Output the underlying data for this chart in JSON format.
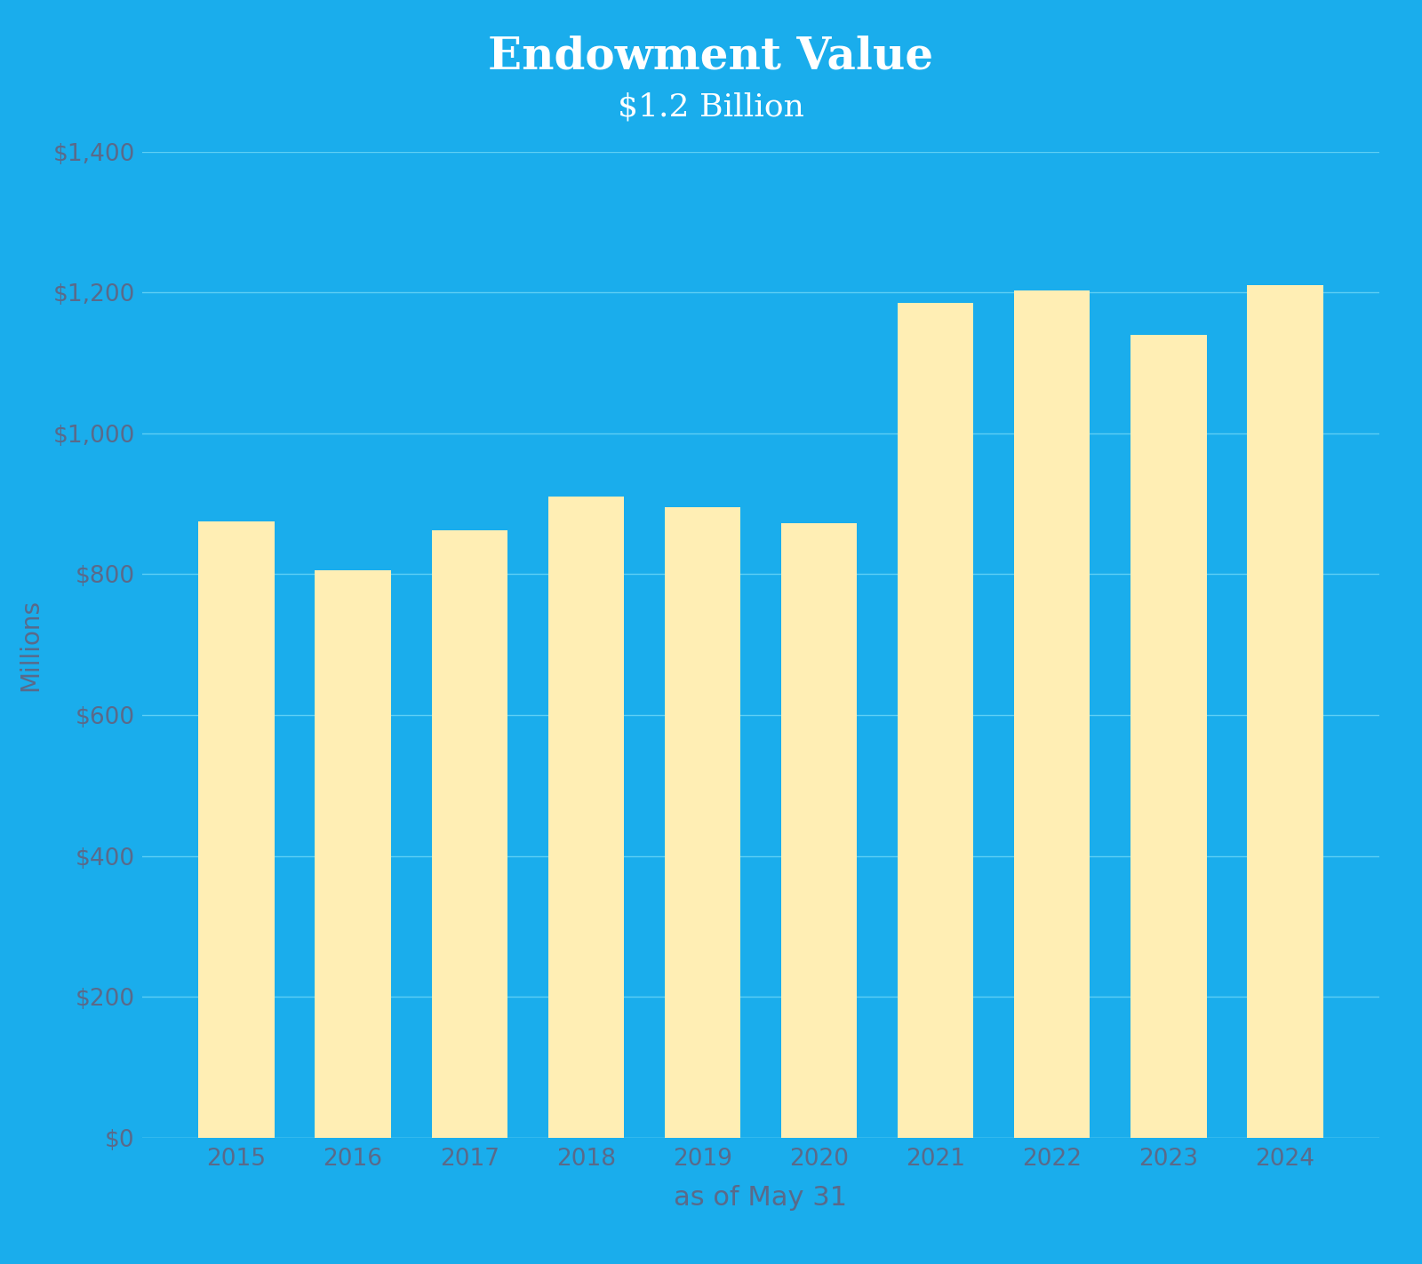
{
  "title": "Endowment Value",
  "subtitle": "$1.2 Billion",
  "xlabel": "as of May 31",
  "ylabel": "Millions",
  "background_color": "#1aadec",
  "bar_color": "#ffeeb4",
  "grid_color": "#5ecff5",
  "title_color": "#ffffff",
  "tick_color": "#5a6a8a",
  "years": [
    2015,
    2016,
    2017,
    2018,
    2019,
    2020,
    2021,
    2022,
    2023,
    2024
  ],
  "values": [
    875,
    805,
    863,
    910,
    895,
    872,
    1185,
    1203,
    1140,
    1210
  ],
  "ylim": [
    0,
    1400
  ],
  "yticks": [
    0,
    200,
    400,
    600,
    800,
    1000,
    1200,
    1400
  ],
  "title_fontsize": 36,
  "subtitle_fontsize": 26,
  "xlabel_fontsize": 22,
  "ylabel_fontsize": 20,
  "tick_fontsize": 19,
  "bar_width": 0.65
}
